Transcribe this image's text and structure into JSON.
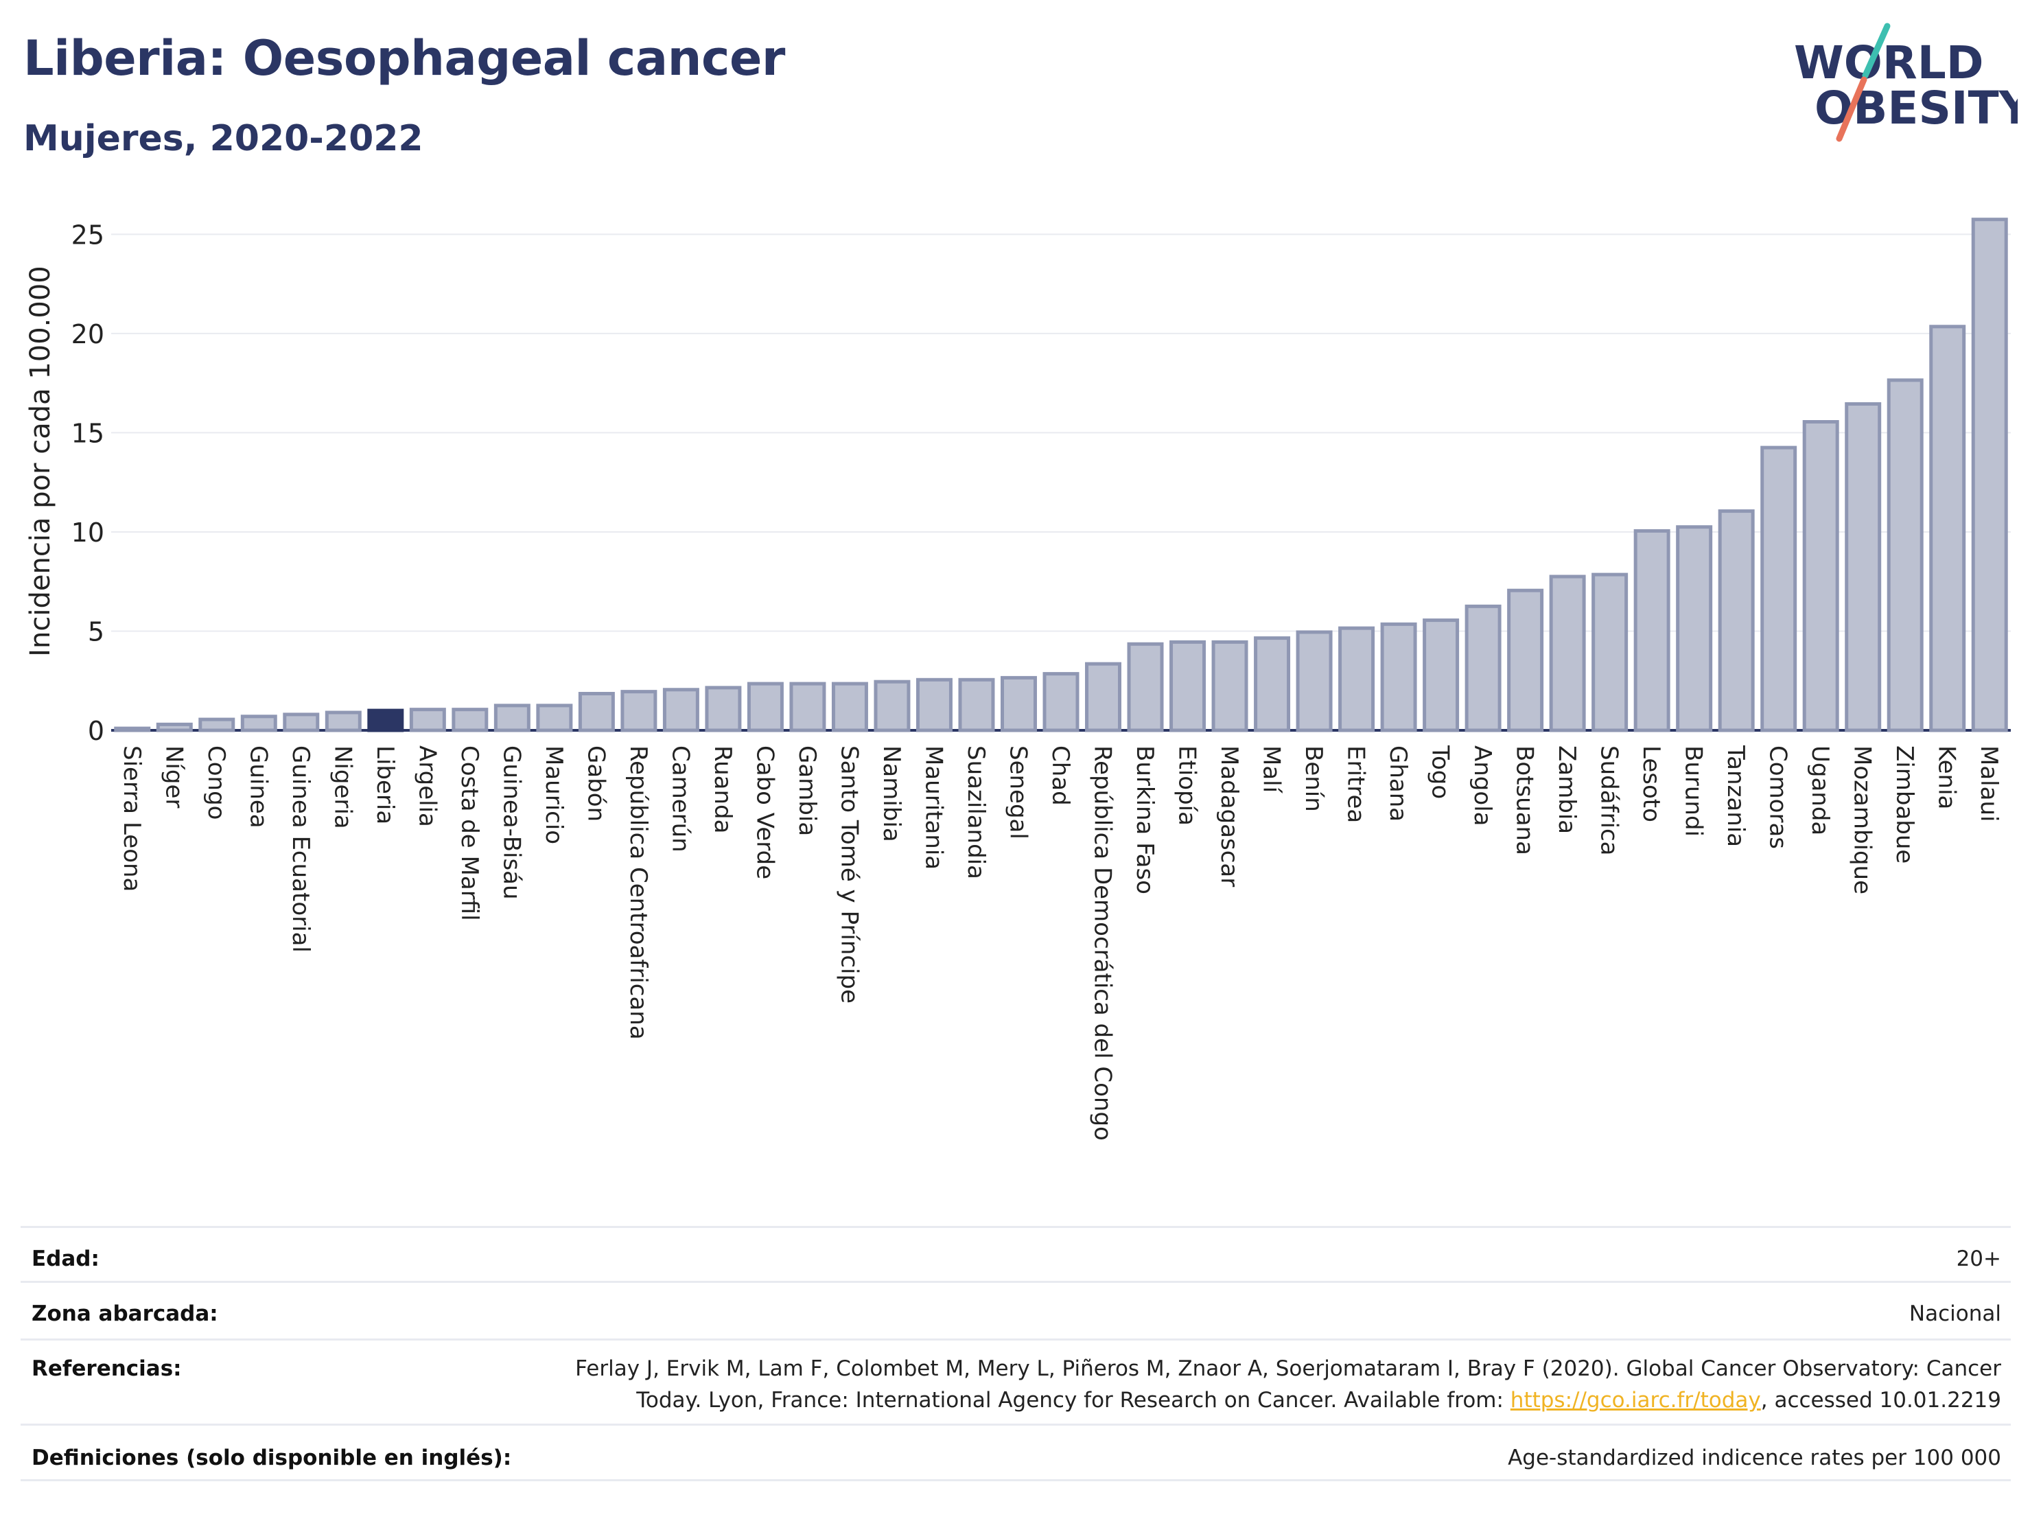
{
  "header": {
    "title": "Liberia: Oesophageal cancer",
    "subtitle": "Mujeres, 2020-2022"
  },
  "logo": {
    "line1": "WORLD",
    "line2": "OBESITY",
    "colors": {
      "text": "#2b3664",
      "slash_top": "#3dbfb0",
      "slash_bottom": "#e8735a"
    }
  },
  "chart_data": {
    "type": "bar",
    "ylabel": "Incidencia por cada 100.000",
    "ylim": [
      0,
      26.5
    ],
    "yticks": [
      0,
      5,
      10,
      15,
      20,
      25
    ],
    "grid": true,
    "highlight": "Liberia",
    "colors": {
      "bar": "#bcc1d1",
      "bar_border": "#8f97b3",
      "highlight": "#2b3664",
      "grid": "#e9ebf0"
    },
    "categories": [
      "Sierra Leona",
      "Níger",
      "Congo",
      "Guinea",
      "Guinea Ecuatorial",
      "Nigeria",
      "Liberia",
      "Argelia",
      "Costa de Marfil",
      "Guinea-Bisáu",
      "Mauricio",
      "Gabón",
      "República Centroafricana",
      "Camerún",
      "Ruanda",
      "Cabo Verde",
      "Gambia",
      "Santo Tomé y Príncipe",
      "Namibia",
      "Mauritania",
      "Suazilandia",
      "Senegal",
      "Chad",
      "República Democrática del Congo",
      "Burkina Faso",
      "Etiopía",
      "Madagascar",
      "Malí",
      "Benín",
      "Eritrea",
      "Ghana",
      "Togo",
      "Angola",
      "Botsuana",
      "Zambia",
      "Sudáfrica",
      "Lesoto",
      "Burundi",
      "Tanzania",
      "Comoras",
      "Uganda",
      "Mozambique",
      "Zimbabue",
      "Kenia",
      "Malaui"
    ],
    "values": [
      0.1,
      0.3,
      0.55,
      0.7,
      0.8,
      0.9,
      1.0,
      1.05,
      1.05,
      1.25,
      1.25,
      1.85,
      1.95,
      2.05,
      2.15,
      2.35,
      2.35,
      2.35,
      2.45,
      2.55,
      2.55,
      2.65,
      2.85,
      3.35,
      4.35,
      4.45,
      4.45,
      4.65,
      4.95,
      5.15,
      5.35,
      5.55,
      6.25,
      7.05,
      7.75,
      7.85,
      10.05,
      10.25,
      11.05,
      14.25,
      15.55,
      16.45,
      17.65,
      20.35,
      25.75
    ]
  },
  "footer": {
    "rows": [
      {
        "label": "Edad:",
        "value": "20+"
      },
      {
        "label": "Zona abarcada:",
        "value": "Nacional"
      },
      {
        "label": "Referencias:",
        "value_line1": "Ferlay J, Ervik M, Lam F, Colombet M, Mery L, Piñeros M, Znaor A, Soerjomataram I, Bray F (2020). Global Cancer Observatory: Cancer",
        "value_line2_pre": "Today. Lyon, France: International Agency for Research on Cancer. Available from: ",
        "value_link": "https://gco.iarc.fr/today",
        "value_line2_post": ", accessed 10.01.2219"
      },
      {
        "label": "Definiciones (solo disponible en inglés):",
        "value": "Age-standardized indicence rates per 100 000"
      }
    ]
  }
}
